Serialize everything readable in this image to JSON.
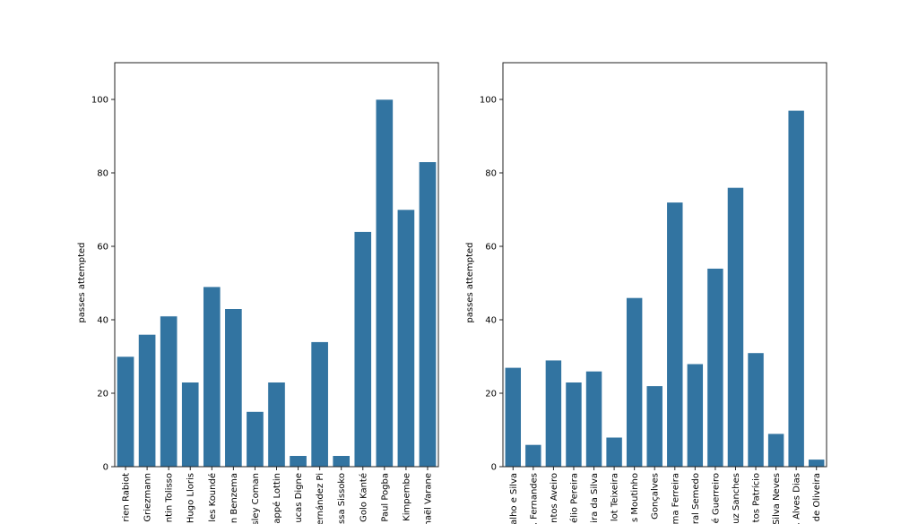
{
  "chart_data": [
    {
      "type": "bar",
      "title": "",
      "xlabel": "",
      "ylabel": "passes attempted",
      "ylim": [
        0,
        110
      ],
      "yticks": [
        0,
        20,
        40,
        60,
        80,
        100
      ],
      "bar_color": "#3274a1",
      "categories": [
        "rien Rabiot",
        "Griezmann",
        "ntin Tolisso",
        "Hugo Lloris",
        "les Koundé",
        "n Benzema",
        "sley Coman",
        "appé Lottin",
        "ucas Digne",
        "ernández Pi",
        "ssa Sissoko",
        "Golo Kanté",
        "Paul Pogba",
        "Kimpembe",
        "naël Varane"
      ],
      "values": [
        30,
        36,
        41,
        23,
        49,
        43,
        15,
        23,
        3,
        34,
        3,
        64,
        100,
        70,
        83
      ]
    },
    {
      "type": "bar",
      "title": "",
      "xlabel": "",
      "ylabel": "passes attempted",
      "ylim": [
        0,
        110
      ],
      "yticks": [
        0,
        20,
        40,
        60,
        80,
        100
      ],
      "bar_color": "#3274a1",
      "categories": [
        "alho e Silva",
        ". Fernandes",
        "ntos Aveiro",
        "élio Pereira",
        "ira da Silva",
        "lot Teixeira",
        "s Moutinho",
        "Gonçalves",
        "ma Ferreira",
        "ral Semedo",
        "é Guerreiro",
        "uz Sanches",
        "tos Patrício",
        "Silva Neves",
        ". Alves Dias",
        "de Oliveira"
      ],
      "values": [
        27,
        6,
        29,
        23,
        26,
        8,
        46,
        22,
        72,
        28,
        54,
        76,
        31,
        9,
        97,
        2
      ]
    }
  ]
}
